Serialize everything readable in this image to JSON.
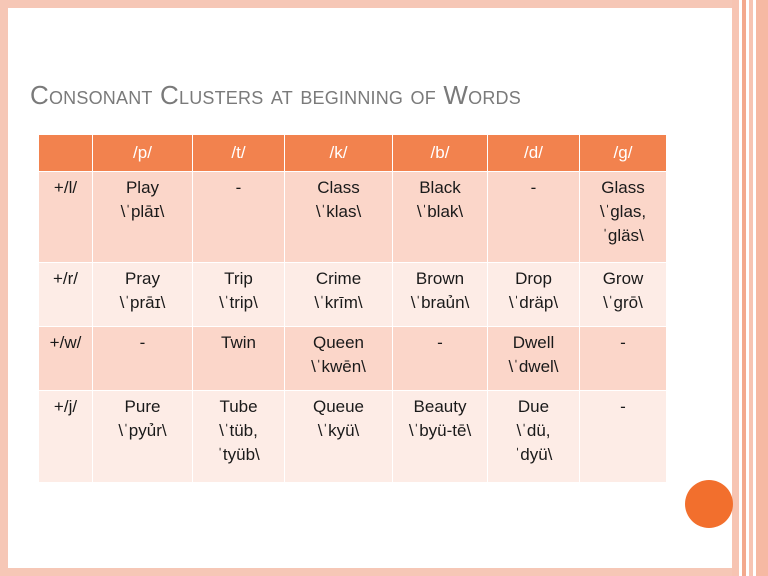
{
  "slide": {
    "title": "Consonant Clusters at beginning of Words"
  },
  "table": {
    "headers": [
      "",
      "/p/",
      "/t/",
      "/k/",
      "/b/",
      "/d/",
      "/g/"
    ],
    "rows": [
      {
        "label": "+/l/",
        "cells": [
          {
            "word": "Play",
            "trans": "\\ˈplāɪ\\"
          },
          {
            "word": "-",
            "trans": ""
          },
          {
            "word": "Class",
            "trans": "\\ˈklas\\"
          },
          {
            "word": "Black",
            "trans": "\\ˈblak\\"
          },
          {
            "word": "-",
            "trans": ""
          },
          {
            "word": "Glass",
            "trans": "\\ˈglas,",
            "trans2": "ˈgläs\\"
          }
        ]
      },
      {
        "label": "+/r/",
        "cells": [
          {
            "word": "Pray",
            "trans": "\\ˈprāɪ\\"
          },
          {
            "word": "Trip",
            "trans": "\\ˈtrip\\"
          },
          {
            "word": "Crime",
            "trans": "\\ˈkrīm\\"
          },
          {
            "word": "Brown",
            "trans": "\\ˈbraủn\\"
          },
          {
            "word": "Drop",
            "trans": "\\ˈdräp\\"
          },
          {
            "word": "Grow",
            "trans": "\\ˈgrō\\"
          }
        ]
      },
      {
        "label": "+/w/",
        "cells": [
          {
            "word": "-",
            "trans": ""
          },
          {
            "word": "Twin",
            "trans": ""
          },
          {
            "word": "Queen",
            "trans": "\\ˈkwēn\\"
          },
          {
            "word": "-",
            "trans": ""
          },
          {
            "word": "Dwell",
            "trans": "\\ˈdwel\\"
          },
          {
            "word": "-",
            "trans": ""
          }
        ]
      },
      {
        "label": "+/j/",
        "cells": [
          {
            "word": "Pure",
            "trans": "\\ˈpyủr\\"
          },
          {
            "word": "Tube",
            "trans": "\\ˈtüb,",
            "trans2": "ˈtyüb\\"
          },
          {
            "word": "Queue",
            "trans": "\\ˈkyü\\"
          },
          {
            "word": "Beauty",
            "trans": "\\ˈbyü-tē\\"
          },
          {
            "word": "Due",
            "trans": "\\ˈdü,",
            "trans2": "ˈdyü\\"
          },
          {
            "word": "-",
            "trans": ""
          }
        ]
      }
    ]
  },
  "colors": {
    "header_bg": "#f2824e",
    "row_odd_bg": "#fbd6c9",
    "row_even_bg": "#fdece6",
    "title_color": "#7a7a7a",
    "accent_circle": "#f26f2d"
  }
}
